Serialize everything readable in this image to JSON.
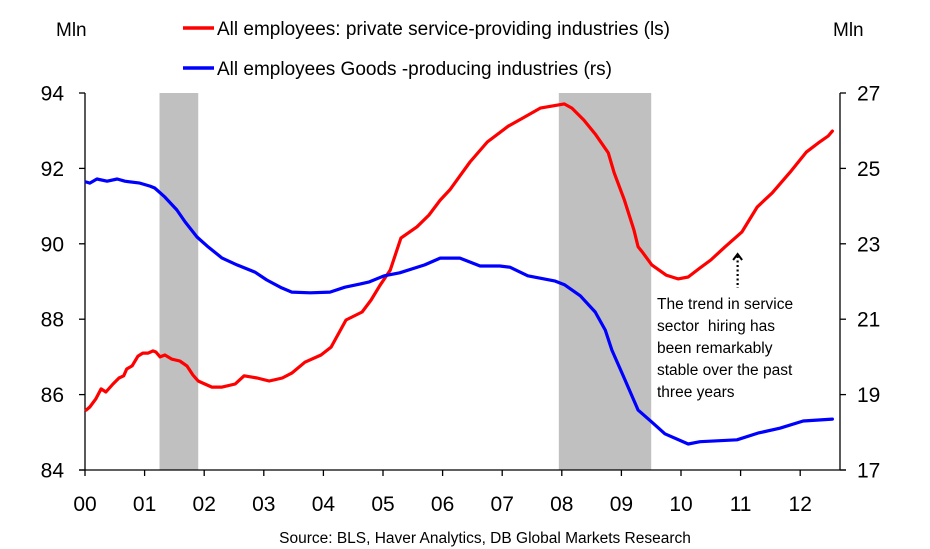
{
  "chart_data": {
    "type": "line",
    "title": "",
    "xlabel": "",
    "left_unit": "Mln",
    "right_unit": "Mln",
    "x_range": [
      2000,
      2012.75
    ],
    "x_ticks": [
      {
        "value": 2000,
        "label": "00"
      },
      {
        "value": 2001,
        "label": "01"
      },
      {
        "value": 2002,
        "label": "02"
      },
      {
        "value": 2003,
        "label": "03"
      },
      {
        "value": 2004,
        "label": "04"
      },
      {
        "value": 2005,
        "label": "05"
      },
      {
        "value": 2006,
        "label": "06"
      },
      {
        "value": 2007,
        "label": "07"
      },
      {
        "value": 2008,
        "label": "08"
      },
      {
        "value": 2009,
        "label": "09"
      },
      {
        "value": 2010,
        "label": "10"
      },
      {
        "value": 2011,
        "label": "11"
      },
      {
        "value": 2012,
        "label": "12"
      }
    ],
    "ylim_left": [
      84,
      94
    ],
    "y_ticks_left": [
      "84",
      "86",
      "88",
      "90",
      "92",
      "94"
    ],
    "ylim_right": [
      17,
      27
    ],
    "y_ticks_right": [
      "17",
      "19",
      "21",
      "23",
      "25",
      "27"
    ],
    "grid": false,
    "legend_position": "top-center",
    "recessions": [
      {
        "start": 2001.25,
        "end": 2001.9
      },
      {
        "start": 2007.95,
        "end": 2009.5
      }
    ],
    "recession_color": "#c0c0c0",
    "series": [
      {
        "name": "All employees: private service-providing industries (ls)",
        "axis": "left",
        "color": "#ff0000",
        "x": [
          2000.02,
          2000.08,
          2000.18,
          2000.27,
          2000.35,
          2000.47,
          2000.57,
          2000.65,
          2000.7,
          2000.79,
          2000.89,
          2000.97,
          2001.06,
          2001.14,
          2001.19,
          2001.26,
          2001.34,
          2001.46,
          2001.59,
          2001.71,
          2001.81,
          2001.9,
          2002.01,
          2002.13,
          2002.3,
          2002.52,
          2002.67,
          2002.89,
          2003.09,
          2003.31,
          2003.47,
          2003.69,
          2003.96,
          2004.13,
          2004.38,
          2004.65,
          2004.8,
          2004.95,
          2005.12,
          2005.3,
          2005.57,
          2005.77,
          2005.96,
          2006.12,
          2006.29,
          2006.46,
          2006.75,
          2007.1,
          2007.35,
          2007.64,
          2008.04,
          2008.17,
          2008.37,
          2008.57,
          2008.78,
          2008.88,
          2009.05,
          2009.21,
          2009.28,
          2009.36,
          2009.51,
          2009.75,
          2009.95,
          2010.12,
          2010.32,
          2010.5,
          2010.74,
          2011.02,
          2011.28,
          2011.53,
          2011.83,
          2012.1,
          2012.3,
          2012.47,
          2012.54
        ],
        "values": [
          85.59,
          85.67,
          85.88,
          86.15,
          86.07,
          86.28,
          86.44,
          86.5,
          86.68,
          86.76,
          87.02,
          87.1,
          87.1,
          87.16,
          87.13,
          87.0,
          87.05,
          86.94,
          86.89,
          86.76,
          86.52,
          86.36,
          86.28,
          86.2,
          86.2,
          86.28,
          86.5,
          86.44,
          86.36,
          86.44,
          86.57,
          86.86,
          87.05,
          87.26,
          87.98,
          88.19,
          88.51,
          88.9,
          89.3,
          90.15,
          90.45,
          90.76,
          91.16,
          91.43,
          91.8,
          92.17,
          92.7,
          93.12,
          93.34,
          93.6,
          93.71,
          93.6,
          93.28,
          92.89,
          92.41,
          91.88,
          91.16,
          90.37,
          89.92,
          89.76,
          89.44,
          89.17,
          89.07,
          89.12,
          89.36,
          89.57,
          89.92,
          90.31,
          90.98,
          91.35,
          91.9,
          92.43,
          92.67,
          92.86,
          92.99
        ]
      },
      {
        "name": "All employees Goods -producing industries (rs)",
        "axis": "right",
        "color": "#0000ff",
        "x": [
          2000.02,
          2000.08,
          2000.2,
          2000.37,
          2000.54,
          2000.67,
          2000.92,
          2001.09,
          2001.17,
          2001.34,
          2001.54,
          2001.68,
          2001.88,
          2002.05,
          2002.3,
          2002.55,
          2002.85,
          2003.05,
          2003.3,
          2003.47,
          2003.78,
          2004.11,
          2004.36,
          2004.61,
          2004.77,
          2005.02,
          2005.28,
          2005.7,
          2005.96,
          2006.29,
          2006.63,
          2006.96,
          2007.13,
          2007.43,
          2007.89,
          2008.05,
          2008.31,
          2008.56,
          2008.73,
          2008.84,
          2009.06,
          2009.28,
          2009.51,
          2009.73,
          2010.12,
          2010.32,
          2010.94,
          2011.29,
          2011.66,
          2012.05,
          2012.54
        ],
        "values": [
          24.64,
          24.61,
          24.72,
          24.66,
          24.72,
          24.66,
          24.61,
          24.53,
          24.48,
          24.24,
          23.9,
          23.58,
          23.18,
          22.94,
          22.62,
          22.44,
          22.25,
          22.04,
          21.83,
          21.72,
          21.7,
          21.72,
          21.85,
          21.93,
          21.99,
          22.15,
          22.23,
          22.44,
          22.62,
          22.62,
          22.41,
          22.41,
          22.38,
          22.15,
          22.01,
          21.91,
          21.62,
          21.19,
          20.71,
          20.18,
          19.39,
          18.59,
          18.27,
          17.96,
          17.69,
          17.75,
          17.8,
          17.98,
          18.11,
          18.3,
          18.35
        ]
      }
    ],
    "annotation": {
      "lines": [
        "The trend in service",
        "sector  hiring has",
        "been remarkably",
        "stable over the past",
        "three years"
      ],
      "arrow_x": 2010.95,
      "arrow_points_to_value": 90.1
    },
    "source": "Source: BLS, Haver Analytics, DB Global Markets Research"
  }
}
